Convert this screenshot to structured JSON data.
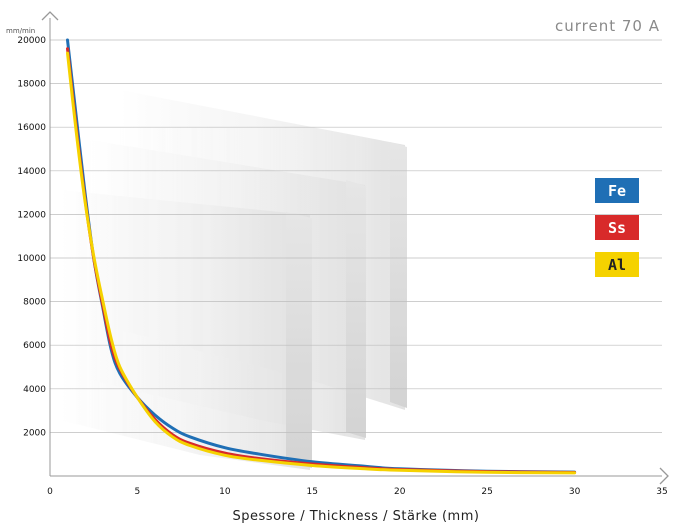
{
  "chart_data": {
    "type": "line",
    "title": "current 70 A",
    "xlabel": "Spessore / Thickness / Stärke (mm)",
    "ylabel": "mm/min",
    "xlim": [
      0,
      35
    ],
    "ylim": [
      0,
      20000
    ],
    "x_ticks": [
      0,
      5,
      10,
      15,
      20,
      25,
      30,
      35
    ],
    "y_ticks": [
      2000,
      4000,
      6000,
      8000,
      10000,
      12000,
      14000,
      16000,
      18000,
      20000
    ],
    "grid": "horizontal",
    "legend_position": "right",
    "series": [
      {
        "name": "Fe",
        "color": "#1f6fb5",
        "text_color": "#ffffff",
        "x": [
          1,
          1.5,
          2,
          2.5,
          3,
          3.5,
          4,
          5,
          6,
          7,
          8,
          10,
          12,
          15,
          18,
          20,
          25,
          30
        ],
        "y": [
          20000,
          16500,
          13000,
          10000,
          7800,
          5800,
          4700,
          3600,
          2800,
          2200,
          1800,
          1300,
          1000,
          650,
          450,
          330,
          220,
          180
        ]
      },
      {
        "name": "Ss",
        "color": "#d82a2a",
        "text_color": "#ffffff",
        "x": [
          1,
          1.5,
          2,
          2.5,
          3,
          3.5,
          4,
          5,
          6,
          7,
          8,
          10,
          12,
          15,
          18,
          20,
          25,
          30
        ],
        "y": [
          19600,
          16000,
          12700,
          10000,
          7900,
          6000,
          4900,
          3600,
          2600,
          1900,
          1500,
          1050,
          800,
          550,
          380,
          300,
          200,
          160
        ]
      },
      {
        "name": "Al",
        "color": "#f5d200",
        "text_color": "#222222",
        "x": [
          1,
          1.5,
          2,
          2.5,
          3,
          3.5,
          4,
          5,
          6,
          7,
          8,
          10,
          12,
          15,
          18,
          20,
          25,
          30
        ],
        "y": [
          19400,
          15800,
          12600,
          10100,
          8100,
          6300,
          5000,
          3600,
          2500,
          1800,
          1400,
          950,
          720,
          480,
          330,
          260,
          170,
          140
        ]
      }
    ]
  }
}
